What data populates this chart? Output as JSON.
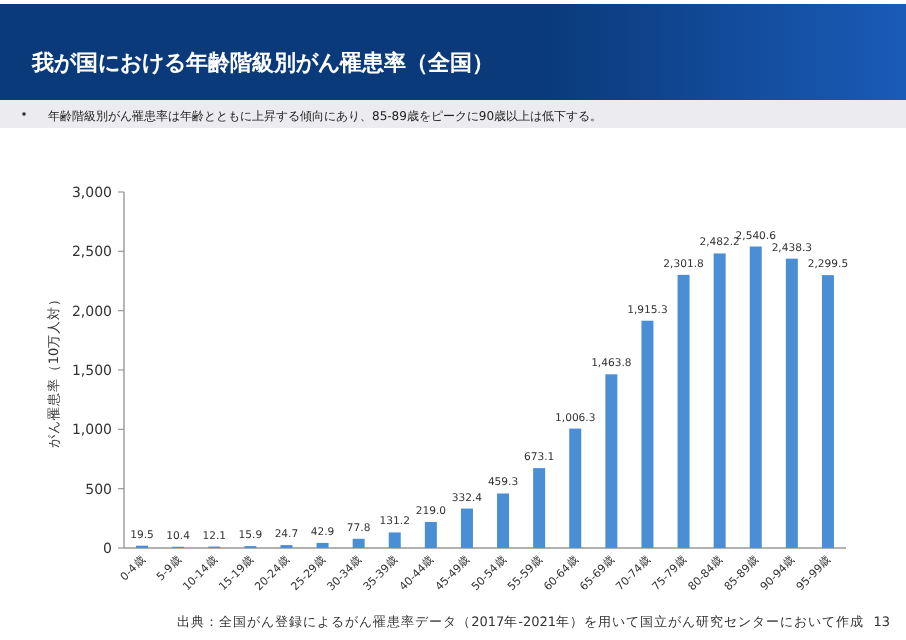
{
  "chart_data": {
    "type": "bar",
    "title": "我が国における年齢階級別がん罹患率（全国）",
    "subtitle": "年齢階級別がん罹患率は年齢とともに上昇する傾向にあり、85-89歳をピークに90歳以上は低下する。",
    "ylabel": "がん罹患率（10万人対）",
    "categories": [
      "0-4歳",
      "5-9歳",
      "10-14歳",
      "15-19歳",
      "20-24歳",
      "25-29歳",
      "30-34歳",
      "35-39歳",
      "40-44歳",
      "45-49歳",
      "50-54歳",
      "55-59歳",
      "60-64歳",
      "65-69歳",
      "70-74歳",
      "75-79歳",
      "80-84歳",
      "85-89歳",
      "90-94歳",
      "95-99歳"
    ],
    "values": [
      19.5,
      10.4,
      12.1,
      15.9,
      24.7,
      42.9,
      77.8,
      131.2,
      219.0,
      332.4,
      459.3,
      673.1,
      1006.3,
      1463.8,
      1915.3,
      2301.8,
      2482.2,
      2540.6,
      2438.3,
      2299.5
    ],
    "value_labels": [
      "19.5",
      "10.4",
      "12.1",
      "15.9",
      "24.7",
      "42.9",
      "77.8",
      "131.2",
      "219.0",
      "332.4",
      "459.3",
      "673.1",
      "1,006.3",
      "1,463.8",
      "1,915.3",
      "2,301.8",
      "2,482.2",
      "2,540.6",
      "2,438.3",
      "2,299.5"
    ],
    "color": "#4a8fd6",
    "ylim": [
      0,
      3000
    ],
    "yticks": [
      0,
      {
        "value": 500,
        "label": "500"
      },
      {
        "value": 1000,
        "label": "1,000"
      },
      {
        "value": 1500,
        "label": "1,500"
      },
      {
        "value": 2000,
        "label": "2,000"
      },
      {
        "value": 2500,
        "label": "2,500"
      },
      {
        "value": 3000,
        "label": "3,000"
      }
    ],
    "grid": false,
    "annotations": [
      "出典：全国がん登録によるがん罹患率データ（2017年-2021年）を用いて国立がん研究センターにおいて作成",
      "13"
    ]
  }
}
